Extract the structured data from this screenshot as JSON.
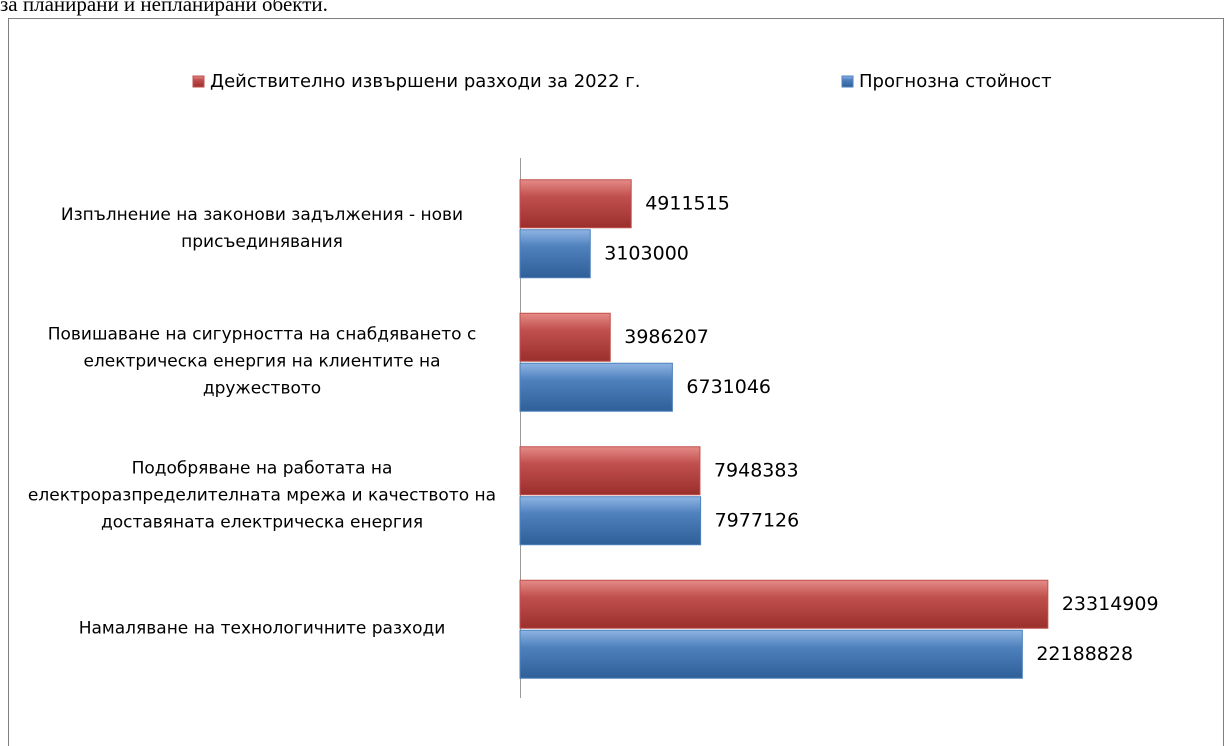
{
  "caption": "за планирани и непланирани обекти.",
  "chart_data": {
    "type": "hbar",
    "categories": [
      "Изпълнение на законови задължения - нови присъединявания",
      "Повишаване на сигурността на снабдяването с електрическа енергия на клиентите на дружеството",
      "Подобряване на работата на електроразпределителната мрежа и качеството на доставяната електрическа енергия",
      "Намаляване на технологичните разходи"
    ],
    "series": [
      {
        "name": "Действително извършени разходи за 2022 г.",
        "color": "#c0504d",
        "values": [
          4911515,
          3986207,
          7948383,
          23314909
        ]
      },
      {
        "name": "Прогнозна стойност",
        "color": "#4f81bd",
        "values": [
          3103000,
          6731046,
          7977126,
          22188828
        ]
      }
    ],
    "xlim": [
      0,
      25000000
    ],
    "legend": "top"
  }
}
